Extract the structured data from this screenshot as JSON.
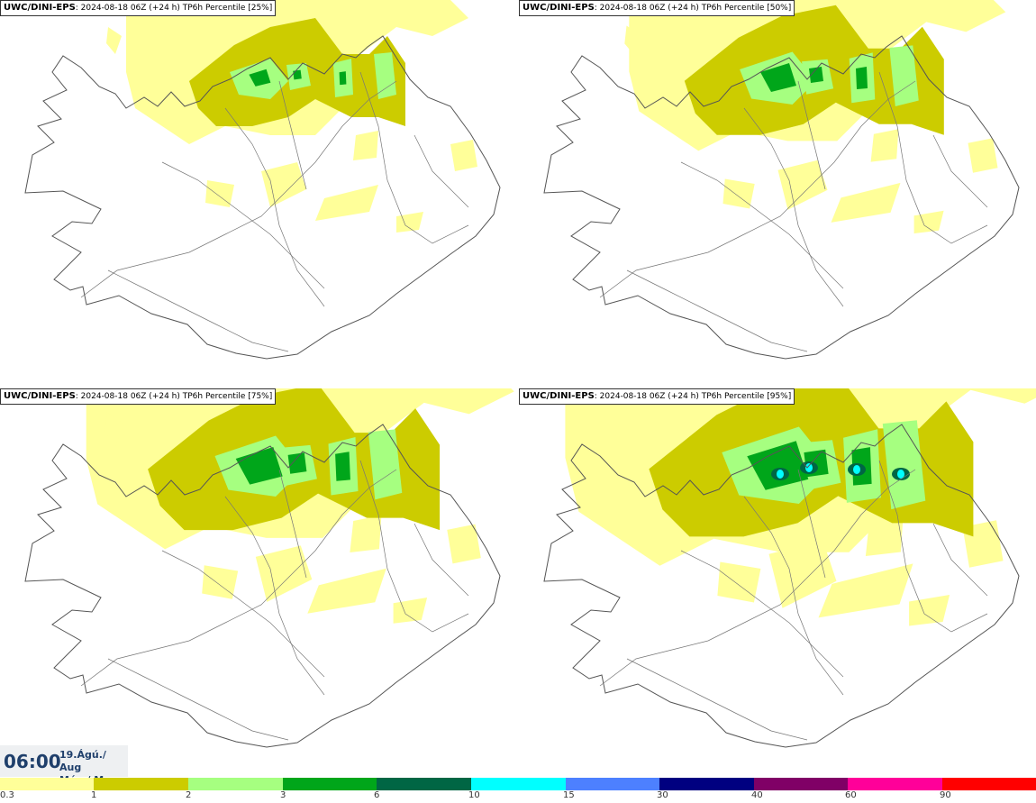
{
  "panels": [
    {
      "model": "UWC/DINI-EPS",
      "info": ": 2024-08-18 06Z (+24 h) TP6h Percentile [25%]"
    },
    {
      "model": "UWC/DINI-EPS",
      "info": ": 2024-08-18 06Z (+24 h) TP6h Percentile [50%]"
    },
    {
      "model": "UWC/DINI-EPS",
      "info": ": 2024-08-18 06Z (+24 h) TP6h Percentile [75%]"
    },
    {
      "model": "UWC/DINI-EPS",
      "info": ": 2024-08-18 06Z (+24 h) TP6h Percentile [95%]"
    }
  ],
  "valid_time": {
    "time": "06:00",
    "date_line": "19.Ágú./ Aug",
    "day_line": "Mán./ Mon"
  },
  "legend": {
    "levels": [
      {
        "label": "0.3",
        "color": "#ffff99"
      },
      {
        "label": "1",
        "color": "#cccc00"
      },
      {
        "label": "2",
        "color": "#a6ff80"
      },
      {
        "label": "3",
        "color": "#00a61a"
      },
      {
        "label": "6",
        "color": "#006644"
      },
      {
        "label": "10",
        "color": "#00ffff"
      },
      {
        "label": "15",
        "color": "#4d80ff"
      },
      {
        "label": "30",
        "color": "#000080"
      },
      {
        "label": "40",
        "color": "#800066"
      },
      {
        "label": "60",
        "color": "#ff0099"
      },
      {
        "label": "90",
        "color": "#ff0000"
      }
    ]
  }
}
